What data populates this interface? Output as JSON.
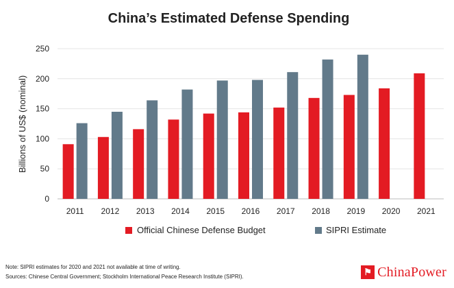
{
  "chart_data": {
    "type": "bar",
    "title": "China’s Estimated Defense Spending",
    "xlabel": "",
    "ylabel": "Billions of US$ (nominal)",
    "ylim": [
      0,
      250
    ],
    "yticks": [
      0,
      50,
      100,
      150,
      200,
      250
    ],
    "grid": true,
    "legend": "bottom",
    "categories": [
      "2011",
      "2012",
      "2013",
      "2014",
      "2015",
      "2016",
      "2017",
      "2018",
      "2019",
      "2020",
      "2021"
    ],
    "series": [
      {
        "name": "Official Chinese Defense Budget",
        "color": "#e31b23",
        "values": [
          91,
          103,
          116,
          132,
          142,
          144,
          152,
          168,
          173,
          184,
          209
        ]
      },
      {
        "name": "SIPRI Estimate",
        "color": "#627a8a",
        "values": [
          126,
          145,
          164,
          182,
          197,
          198,
          211,
          232,
          240,
          null,
          null
        ]
      }
    ]
  },
  "footer": {
    "note": "Note: SIPRI estimates for 2020 and 2021 not available at time of writing.",
    "sources": "Sources: Chinese Central Government; Stockholm International Peace Research Institute (SIPRI).",
    "brand": "ChinaPower",
    "brand_icon": "lantern-icon"
  }
}
